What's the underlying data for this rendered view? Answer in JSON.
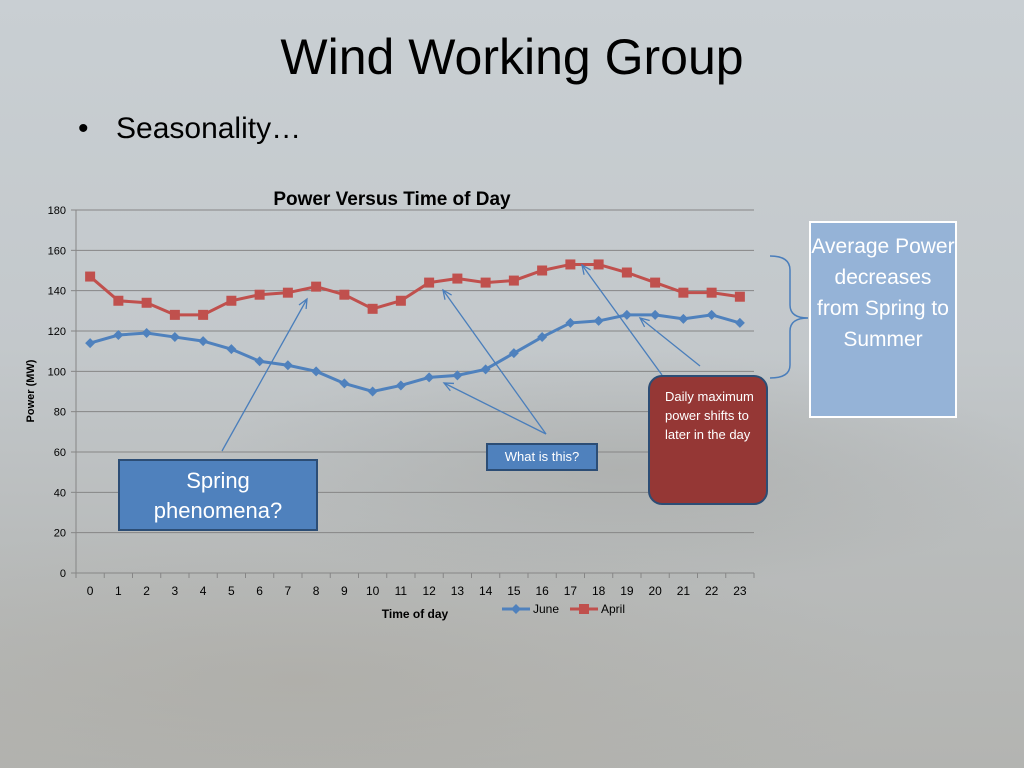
{
  "slide": {
    "title": "Wind Working Group",
    "bullet": "Seasonality…"
  },
  "callouts": {
    "spring": "Spring phenomena?",
    "what_is_this": "What is this?",
    "daily_max": "Daily maximum power shifts to later in the day",
    "average_power": "Average Power decreases from Spring to Summer"
  },
  "colors": {
    "june": "#4f81bd",
    "april": "#c0504d",
    "arrow": "#4a7ebb"
  },
  "chart_data": {
    "type": "line",
    "title": "Power Versus Time of Day",
    "xlabel": "Time of day",
    "ylabel": "Power (MW)",
    "ylim": [
      0,
      180
    ],
    "yticks": [
      0,
      20,
      40,
      60,
      80,
      100,
      120,
      140,
      160,
      180
    ],
    "grid": true,
    "legend_position": "bottom",
    "x": [
      0,
      1,
      2,
      3,
      4,
      5,
      6,
      7,
      8,
      9,
      10,
      11,
      12,
      13,
      14,
      15,
      16,
      17,
      18,
      19,
      20,
      21,
      22,
      23
    ],
    "series": [
      {
        "name": "June",
        "marker": "diamond",
        "values": [
          114,
          118,
          119,
          117,
          115,
          111,
          105,
          103,
          100,
          94,
          90,
          93,
          97,
          98,
          101,
          109,
          117,
          124,
          125,
          128,
          128,
          126,
          128,
          124
        ]
      },
      {
        "name": "April",
        "marker": "square",
        "values": [
          147,
          135,
          134,
          128,
          128,
          135,
          138,
          139,
          142,
          138,
          131,
          135,
          144,
          146,
          144,
          145,
          150,
          153,
          153,
          149,
          144,
          139,
          139,
          137
        ]
      }
    ]
  }
}
